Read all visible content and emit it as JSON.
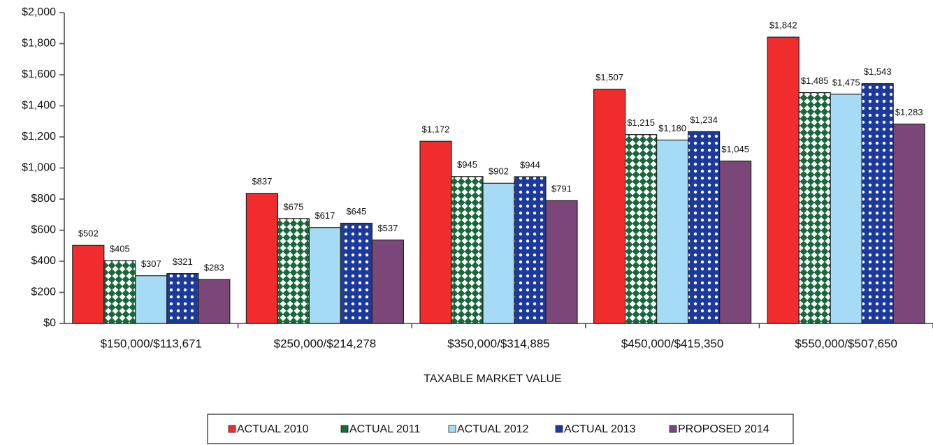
{
  "chart_data": {
    "type": "bar",
    "x_label": "TAXABLE MARKET VALUE",
    "categories": [
      "$150,000/$113,671",
      "$250,000/$214,278",
      "$350,000/$314,885",
      "$450,000/$415,350",
      "$550,000/$507,650"
    ],
    "series": [
      {
        "name": "ACTUAL 2010",
        "color": "#f02c2c",
        "pattern": "solid",
        "values": [
          502,
          837,
          1172,
          1507,
          1842
        ],
        "value_labels": [
          "$502",
          "$837",
          "$1,172",
          "$1,507",
          "$1,842"
        ]
      },
      {
        "name": "ACTUAL 2011",
        "color": "#17683a",
        "pattern": "diamond",
        "values": [
          405,
          675,
          945,
          1215,
          1485
        ],
        "value_labels": [
          "$405",
          "$675",
          "$945",
          "$1,215",
          "$1,485"
        ]
      },
      {
        "name": "ACTUAL 2012",
        "color": "#a6dbf5",
        "pattern": "solid",
        "values": [
          307,
          617,
          902,
          1180,
          1475
        ],
        "value_labels": [
          "$307",
          "$617",
          "$902",
          "$1,180",
          "$1,475"
        ]
      },
      {
        "name": "ACTUAL 2013",
        "color": "#1c3a9c",
        "pattern": "dots",
        "values": [
          321,
          645,
          944,
          1234,
          1543
        ],
        "value_labels": [
          "$321",
          "$645",
          "$944",
          "$1,234",
          "$1,543"
        ]
      },
      {
        "name": "PROPOSED 2014",
        "color": "#7b4779",
        "pattern": "solid",
        "values": [
          283,
          537,
          791,
          1045,
          1283
        ],
        "value_labels": [
          "$283",
          "$537",
          "$791",
          "$1,045",
          "$1,283"
        ]
      }
    ],
    "ylim": [
      0,
      2000
    ],
    "yticks": [
      {
        "value": 0,
        "label": "$0"
      },
      {
        "value": 200,
        "label": "$200"
      },
      {
        "value": 400,
        "label": "$400"
      },
      {
        "value": 600,
        "label": "$600"
      },
      {
        "value": 800,
        "label": "$800"
      },
      {
        "value": 1000,
        "label": "$1,000"
      },
      {
        "value": 1200,
        "label": "$1,200"
      },
      {
        "value": 1400,
        "label": "$1,400"
      },
      {
        "value": 1600,
        "label": "$1,600"
      },
      {
        "value": 1800,
        "label": "$1,800"
      },
      {
        "value": 2000,
        "label": "$2,000"
      }
    ],
    "grid": false,
    "legend": "bottom"
  }
}
